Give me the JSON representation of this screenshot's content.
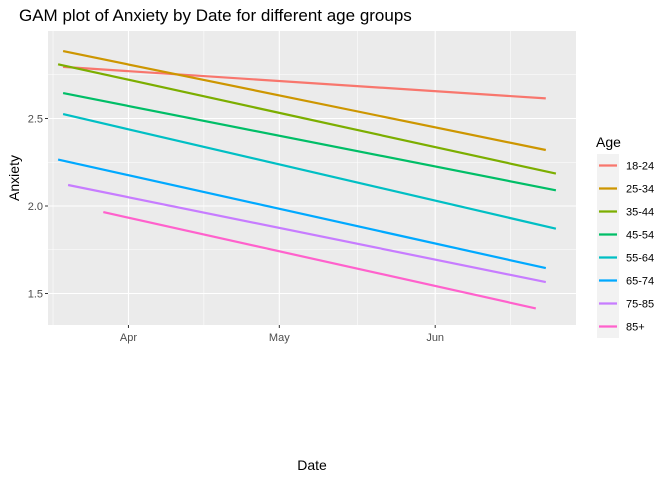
{
  "chart_data": {
    "type": "line",
    "title": "GAM plot of Anxiety by Date for different age groups",
    "xlabel": "Date",
    "ylabel": "Anxiety",
    "x_ticks": [
      {
        "label": "Apr",
        "date": "2020-04-01"
      },
      {
        "label": "May",
        "date": "2020-05-01"
      },
      {
        "label": "Jun",
        "date": "2020-06-01"
      }
    ],
    "y_ticks": [
      1.5,
      2.0,
      2.5
    ],
    "xlim": [
      "2020-03-16",
      "2020-06-29"
    ],
    "ylim": [
      1.32,
      3.0
    ],
    "grid": true,
    "legend": {
      "title": "Age",
      "placement": "right"
    },
    "series": [
      {
        "name": "18-24",
        "color": "#F8766D",
        "x": [
          "2020-03-19",
          "2020-06-23"
        ],
        "y": [
          2.795,
          2.615
        ]
      },
      {
        "name": "25-34",
        "color": "#CD9600",
        "x": [
          "2020-03-19",
          "2020-06-23"
        ],
        "y": [
          2.885,
          2.32
        ]
      },
      {
        "name": "35-44",
        "color": "#7CAE00",
        "x": [
          "2020-03-18",
          "2020-06-25"
        ],
        "y": [
          2.81,
          2.185
        ]
      },
      {
        "name": "45-54",
        "color": "#00BE67",
        "x": [
          "2020-03-19",
          "2020-06-25"
        ],
        "y": [
          2.645,
          2.09
        ]
      },
      {
        "name": "55-64",
        "color": "#00BFC4",
        "x": [
          "2020-03-19",
          "2020-06-25"
        ],
        "y": [
          2.525,
          1.87
        ]
      },
      {
        "name": "65-74",
        "color": "#00A9FF",
        "x": [
          "2020-03-18",
          "2020-06-23"
        ],
        "y": [
          2.265,
          1.645
        ]
      },
      {
        "name": "75-85",
        "color": "#C77CFF",
        "x": [
          "2020-03-20",
          "2020-06-23"
        ],
        "y": [
          2.12,
          1.565
        ]
      },
      {
        "name": "85+",
        "color": "#FF61CC",
        "x": [
          "2020-03-27",
          "2020-06-21"
        ],
        "y": [
          1.965,
          1.415
        ]
      }
    ]
  }
}
